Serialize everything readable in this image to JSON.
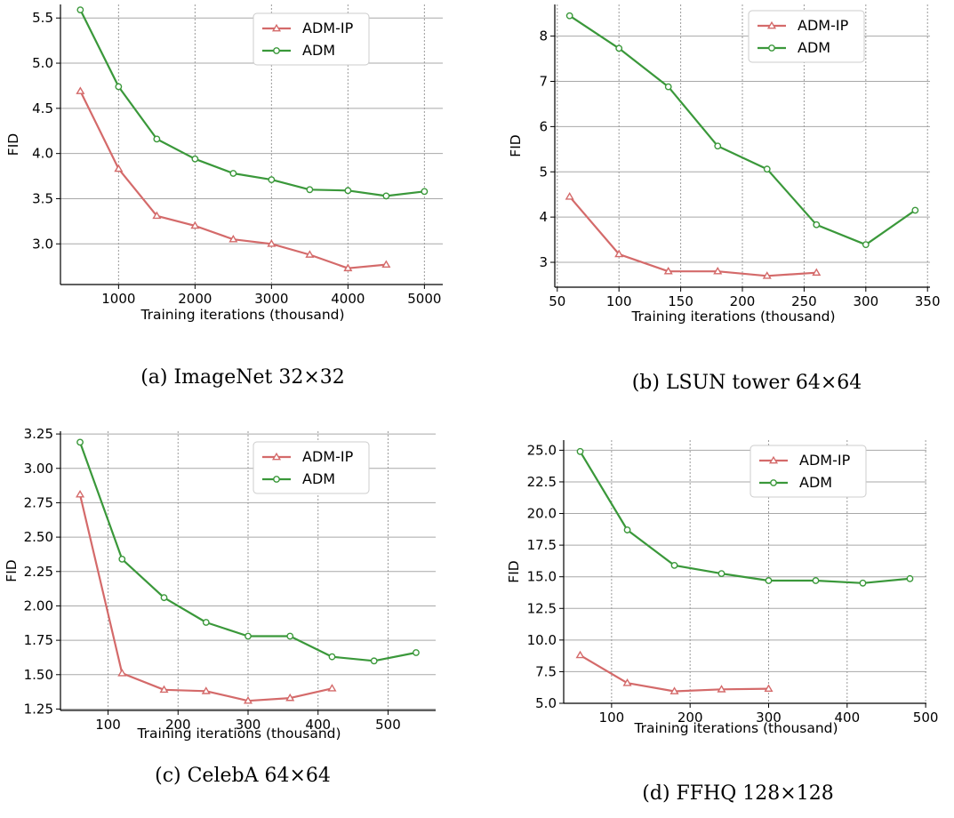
{
  "colors": {
    "adm_ip": "#d46a6a",
    "adm": "#3a983a",
    "grid": "#999999"
  },
  "chart_data": [
    {
      "type": "line",
      "caption": "(a)  ImageNet 32×32",
      "xlabel": "Training iterations (thousand)",
      "ylabel": "FID",
      "xlim": [
        240,
        5240
      ],
      "ylim": [
        2.55,
        5.65
      ],
      "xticks": [
        1000,
        2000,
        3000,
        4000,
        5000
      ],
      "xtick_labels": [
        "1000",
        "2000",
        "3000",
        "4000",
        "5000"
      ],
      "yticks": [
        3.0,
        3.5,
        4.0,
        4.5,
        5.0,
        5.5
      ],
      "ytick_labels": [
        "3.0",
        "3.5",
        "4.0",
        "4.5",
        "5.0",
        "5.5"
      ],
      "grid": true,
      "legend": "top-right",
      "series": [
        {
          "name": "ADM-IP",
          "marker": "triangle",
          "x": [
            500,
            1000,
            1500,
            2000,
            2500,
            3000,
            3500,
            4000,
            4500
          ],
          "y": [
            4.69,
            3.83,
            3.31,
            3.2,
            3.05,
            3.0,
            2.88,
            2.73,
            2.77
          ]
        },
        {
          "name": "ADM",
          "marker": "circle",
          "x": [
            500,
            1000,
            1500,
            2000,
            2500,
            3000,
            3500,
            4000,
            4500,
            5000
          ],
          "y": [
            5.59,
            4.74,
            4.16,
            3.94,
            3.78,
            3.71,
            3.6,
            3.59,
            3.53,
            3.58
          ]
        }
      ]
    },
    {
      "type": "line",
      "caption": "(b)  LSUN tower 64×64",
      "xlabel": "Training iterations (thousand)",
      "ylabel": "FID",
      "xlim": [
        48,
        352
      ],
      "ylim": [
        2.45,
        8.7
      ],
      "xticks": [
        50,
        100,
        150,
        200,
        250,
        300,
        350
      ],
      "xtick_labels": [
        "50",
        "100",
        "150",
        "200",
        "250",
        "300",
        "350"
      ],
      "yticks": [
        3,
        4,
        5,
        6,
        7,
        8
      ],
      "ytick_labels": [
        "3",
        "4",
        "5",
        "6",
        "7",
        "8"
      ],
      "grid": true,
      "legend": "top-right",
      "series": [
        {
          "name": "ADM-IP",
          "marker": "triangle",
          "x": [
            60,
            100,
            140,
            180,
            220,
            260
          ],
          "y": [
            4.45,
            3.18,
            2.8,
            2.8,
            2.7,
            2.77
          ]
        },
        {
          "name": "ADM",
          "marker": "circle",
          "x": [
            60,
            100,
            140,
            180,
            220,
            260,
            300,
            340
          ],
          "y": [
            8.45,
            7.73,
            6.88,
            5.57,
            5.06,
            3.83,
            3.39,
            4.15
          ]
        }
      ]
    },
    {
      "type": "line",
      "caption": "(c)  CelebA 64×64",
      "xlabel": "Training iterations (thousand)",
      "ylabel": "FID",
      "xlim": [
        32,
        568
      ],
      "ylim": [
        1.24,
        3.27
      ],
      "xticks": [
        100,
        200,
        300,
        400,
        500
      ],
      "xtick_labels": [
        "100",
        "200",
        "300",
        "400",
        "500"
      ],
      "yticks": [
        1.25,
        1.5,
        1.75,
        2.0,
        2.25,
        2.5,
        2.75,
        3.0,
        3.25
      ],
      "ytick_labels": [
        "1.25",
        "1.50",
        "1.75",
        "2.00",
        "2.25",
        "2.50",
        "2.75",
        "3.00",
        "3.25"
      ],
      "grid": true,
      "legend": "top-right",
      "series": [
        {
          "name": "ADM-IP",
          "marker": "triangle",
          "x": [
            60,
            120,
            180,
            240,
            300,
            360,
            420
          ],
          "y": [
            2.81,
            1.51,
            1.39,
            1.38,
            1.31,
            1.33,
            1.4
          ]
        },
        {
          "name": "ADM",
          "marker": "circle",
          "x": [
            60,
            120,
            180,
            240,
            300,
            360,
            420,
            480,
            540
          ],
          "y": [
            3.19,
            2.34,
            2.06,
            1.88,
            1.78,
            1.78,
            1.63,
            1.6,
            1.66
          ]
        }
      ]
    },
    {
      "type": "line",
      "caption": "(d)  FFHQ 128×128",
      "xlabel": "Training iterations (thousand)",
      "ylabel": "FID",
      "xlim": [
        39,
        501
      ],
      "ylim": [
        5.0,
        25.8
      ],
      "xticks": [
        100,
        200,
        300,
        400,
        500
      ],
      "xtick_labels": [
        "100",
        "200",
        "300",
        "400",
        "500"
      ],
      "yticks": [
        5.0,
        7.5,
        10.0,
        12.5,
        15.0,
        17.5,
        20.0,
        22.5,
        25.0
      ],
      "ytick_labels": [
        "5.0",
        "7.5",
        "10.0",
        "12.5",
        "15.0",
        "17.5",
        "20.0",
        "22.5",
        "25.0"
      ],
      "grid": true,
      "legend": "top-right",
      "series": [
        {
          "name": "ADM-IP",
          "marker": "triangle",
          "x": [
            60,
            120,
            180,
            240,
            300
          ],
          "y": [
            8.8,
            6.6,
            5.95,
            6.1,
            6.15
          ]
        },
        {
          "name": "ADM",
          "marker": "circle",
          "x": [
            60,
            120,
            180,
            240,
            300,
            360,
            420,
            480
          ],
          "y": [
            24.9,
            18.7,
            15.9,
            15.25,
            14.7,
            14.7,
            14.5,
            14.85
          ]
        }
      ]
    }
  ]
}
